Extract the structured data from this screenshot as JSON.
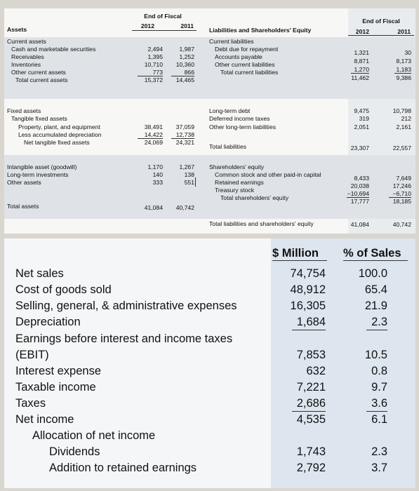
{
  "balance_sheet": {
    "assets_header": "Assets",
    "fiscal_header_left": "End of Fiscal",
    "year_2012": "2012",
    "year_2011": "2011",
    "liab_header": "Liabilities and Shareholders' Equity",
    "fiscal_header_right": "End of Fiscal",
    "current_assets": "Current assets",
    "cash": {
      "label": "Cash and marketable securities",
      "v2012": "2,494",
      "v2011": "1,987"
    },
    "receivables": {
      "label": "Receivables",
      "v2012": "1,395",
      "v2011": "1,252"
    },
    "inventories": {
      "label": "Inventories",
      "v2012": "10,710",
      "v2011": "10,360"
    },
    "other_current": {
      "label": "Other current assets",
      "v2012": "773",
      "v2011": "866"
    },
    "total_current": {
      "label": "Total current assets",
      "v2012": "15,372",
      "v2011": "14,465"
    },
    "current_liab": "Current liabilities",
    "debt_due": {
      "label": "Debt due for repayment",
      "v2012": "1,321",
      "v2011": "30"
    },
    "payable": {
      "label": "Accounts payable",
      "v2012": "8,871",
      "v2011": "8,173"
    },
    "other_cl": {
      "label": "Other current liabilities",
      "v2012": "1,270",
      "v2011": "1,183"
    },
    "total_cl": {
      "label": "Total current liabilities",
      "v2012": "11,462",
      "v2011": "9,386"
    },
    "fixed_assets": "Fixed assets",
    "tangible": "Tangible fixed assets",
    "ppe": {
      "label": "Property, plant, and equipment",
      "v2012": "38,491",
      "v2011": "37,059"
    },
    "depr": {
      "label": "Less accumulated depreciation",
      "v2012": "14,422",
      "v2011": "12,738"
    },
    "net_tangible": {
      "label": "Net tangible fixed assets",
      "v2012": "24,069",
      "v2011": "24,321"
    },
    "ltdebt": {
      "label": "Long-term debt",
      "v2012": "9,475",
      "v2011": "10,798"
    },
    "deferred": {
      "label": "Deferred income taxes",
      "v2012": "319",
      "v2011": "212"
    },
    "other_ltl": {
      "label": "Other long-term liabilities",
      "v2012": "2,051",
      "v2011": "2,161"
    },
    "total_liab": {
      "label": "Total liabilities",
      "v2012": "23,307",
      "v2011": "22,557"
    },
    "intangible": {
      "label": "Intangible asset (goodwill)",
      "v2012": "1,170",
      "v2011": "1,267"
    },
    "lt_invest": {
      "label": "Long-term investments",
      "v2012": "140",
      "v2011": "138"
    },
    "other_assets": {
      "label": "Other assets",
      "v2012": "333",
      "v2011": "551"
    },
    "sh_equity": "Shareholders' equity",
    "common": {
      "label": "Common stock and other paid-in capital",
      "v2012": "8,433",
      "v2011": "7,649"
    },
    "retained": {
      "label": "Retained earnings",
      "v2012": "20,038",
      "v2011": "17,246"
    },
    "treasury": {
      "label": "Treasury stock",
      "v2012": "−10,694",
      "v2011": "−6,710"
    },
    "total_sh": {
      "label": "Total shareholders' equity",
      "v2012": "17,777",
      "v2011": "18,185"
    },
    "total_assets": {
      "label": "Total assets",
      "v2012": "41,084",
      "v2011": "40,742"
    },
    "total_ls": {
      "label": "Total liabilities and shareholders' equity",
      "v2012": "41,084",
      "v2011": "40,742"
    }
  },
  "income_statement": {
    "col_million": "$ Million",
    "col_pct": "% of Sales",
    "net_sales": {
      "label": "Net sales",
      "m": "74,754",
      "p": "100.0"
    },
    "cogs": {
      "label": "Cost of goods sold",
      "m": "48,912",
      "p": "65.4"
    },
    "sga": {
      "label": "Selling, general, & administrative expenses",
      "m": "16,305",
      "p": "21.9"
    },
    "depreciation": {
      "label": "Depreciation",
      "m": "1,684",
      "p": "2.3"
    },
    "ebit_l1": "Earnings before interest and income taxes",
    "ebit": {
      "label": "(EBIT)",
      "m": "7,853",
      "p": "10.5"
    },
    "interest": {
      "label": "Interest expense",
      "m": "632",
      "p": "0.8"
    },
    "taxable": {
      "label": "Taxable income",
      "m": "7,221",
      "p": "9.7"
    },
    "taxes": {
      "label": "Taxes",
      "m": "2,686",
      "p": "3.6"
    },
    "net_income": {
      "label": "Net income",
      "m": "4,535",
      "p": "6.1"
    },
    "allocation": "Allocation of net income",
    "dividends": {
      "label": "Dividends",
      "m": "1,743",
      "p": "2.3"
    },
    "retained": {
      "label": "Addition to retained earnings",
      "m": "2,792",
      "p": "3.7"
    }
  }
}
